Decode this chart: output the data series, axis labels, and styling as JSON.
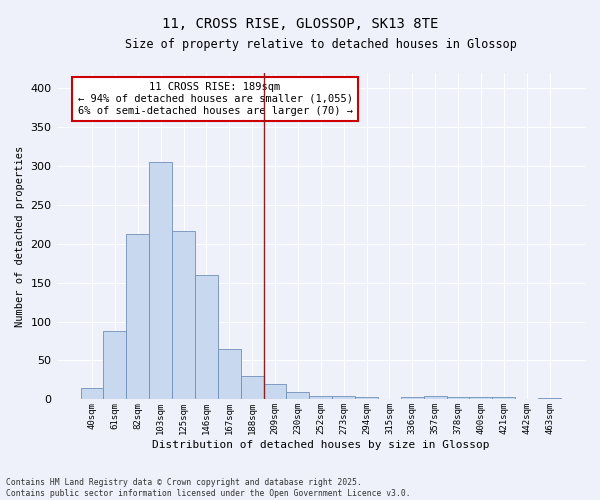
{
  "title": "11, CROSS RISE, GLOSSOP, SK13 8TE",
  "subtitle": "Size of property relative to detached houses in Glossop",
  "xlabel": "Distribution of detached houses by size in Glossop",
  "ylabel": "Number of detached properties",
  "categories": [
    "40sqm",
    "61sqm",
    "82sqm",
    "103sqm",
    "125sqm",
    "146sqm",
    "167sqm",
    "188sqm",
    "209sqm",
    "230sqm",
    "252sqm",
    "273sqm",
    "294sqm",
    "315sqm",
    "336sqm",
    "357sqm",
    "378sqm",
    "400sqm",
    "421sqm",
    "442sqm",
    "463sqm"
  ],
  "values": [
    15,
    88,
    212,
    305,
    217,
    160,
    65,
    30,
    20,
    9,
    5,
    5,
    3,
    0,
    3,
    4,
    3,
    3,
    3,
    0,
    2
  ],
  "bar_color": "#c8d8ee",
  "bar_edge_color": "#7090b8",
  "vline_x_index": 7.5,
  "vline_color": "#8b2020",
  "annotation_text": "11 CROSS RISE: 189sqm\n← 94% of detached houses are smaller (1,055)\n6% of semi-detached houses are larger (70) →",
  "annotation_box_color": "#ffffff",
  "annotation_box_edge": "#cc0000",
  "ylim": [
    0,
    420
  ],
  "background_color": "#eef1fa",
  "grid_color": "#ffffff",
  "footer": "Contains HM Land Registry data © Crown copyright and database right 2025.\nContains public sector information licensed under the Open Government Licence v3.0."
}
